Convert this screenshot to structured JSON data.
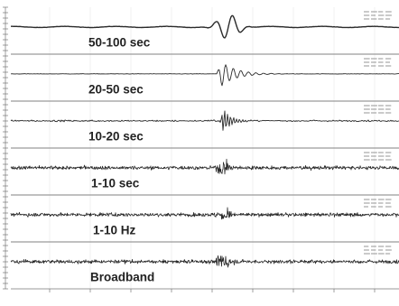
{
  "chart_data": {
    "type": "line",
    "panels": [
      {
        "label": "50-100 sec",
        "kind": "lp"
      },
      {
        "label": "20-50 sec",
        "kind": "mp"
      },
      {
        "label": "10-20 sec",
        "kind": "hp"
      },
      {
        "label": "1-10 sec",
        "kind": "noise"
      },
      {
        "label": "1-10 Hz",
        "kind": "noise"
      },
      {
        "label": "Broadband",
        "kind": "noise"
      }
    ],
    "grid": true,
    "colors": {
      "trace": "#2a2a2a",
      "separator": "#9a9a9a"
    }
  }
}
